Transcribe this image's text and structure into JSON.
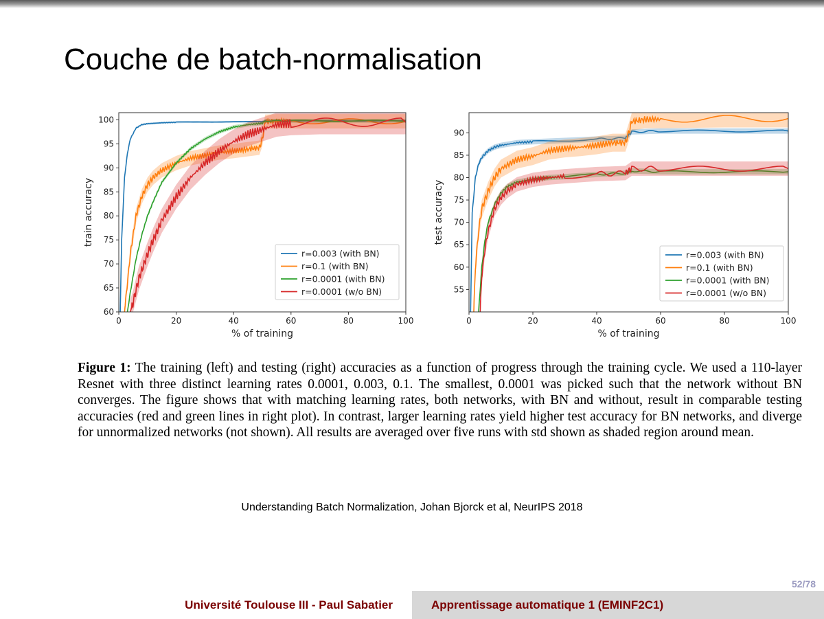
{
  "slide": {
    "title": "Couche de batch-normalisation",
    "figure_caption_label": "Figure 1:",
    "figure_caption_text": " The training (left) and testing (right) accuracies as a function of progress through the training cycle. We used a 110-layer Resnet with three distinct learning rates 0.0001, 0.003, 0.1. The smallest, 0.0001 was picked such that the network without BN converges. The figure shows that with matching learning rates, both networks, with BN and without, result in comparable testing accuracies (red and green lines in right plot). In contrast, larger learning rates yield higher test accuracy for BN networks, and diverge for unnormalized networks (not shown). All results are averaged over five runs with std shown as shaded region around mean.",
    "citation": "Understanding Batch Normalization, Johan Bjorck et al, NeurIPS 2018",
    "page_number": "52/78",
    "footer_left": "Université Toulouse III - Paul Sabatier",
    "footer_right": "Apprentissage automatique 1 (EMINF2C1)"
  },
  "colors": {
    "blue": "#1f77b4",
    "orange": "#ff7f0e",
    "green": "#2ca02c",
    "red": "#d62728",
    "footer_text": "#7a0000",
    "footer_bg": "#d7d7d7"
  },
  "chart_data": [
    {
      "type": "line",
      "title": "",
      "xlabel": "% of training",
      "ylabel": "train accuracy",
      "xlim": [
        0,
        100
      ],
      "ylim": [
        60,
        101.5
      ],
      "xticks": [
        0,
        20,
        40,
        60,
        80,
        100
      ],
      "yticks": [
        60,
        65,
        70,
        75,
        80,
        85,
        90,
        95,
        100
      ],
      "grid": false,
      "legend_position": "lower-right",
      "series": [
        {
          "name": "r=0.003 (with BN)",
          "color": "#1f77b4",
          "x": [
            0.5,
            1,
            2,
            3,
            4,
            6,
            8,
            10,
            15,
            20,
            30,
            40,
            50,
            51,
            60,
            80,
            100
          ],
          "y": [
            60,
            75,
            88,
            93,
            96,
            98.3,
            99,
            99.2,
            99.4,
            99.5,
            99.6,
            99.6,
            99.6,
            99.8,
            99.8,
            99.8,
            99.8
          ],
          "std": 0.2
        },
        {
          "name": "r=0.1 (with BN)",
          "color": "#ff7f0e",
          "x": [
            2,
            3,
            4,
            5,
            6,
            8,
            10,
            12,
            15,
            20,
            25,
            30,
            35,
            40,
            45,
            49,
            50,
            51,
            55,
            60,
            80,
            100
          ],
          "y": [
            60,
            66,
            72,
            76,
            80,
            84,
            86.5,
            88,
            89.5,
            91,
            92,
            92.6,
            93.2,
            93.5,
            93.9,
            94.2,
            96,
            99.6,
            99.7,
            99.7,
            99.7,
            99.7
          ],
          "std": 1.5
        },
        {
          "name": "r=0.0001 (with BN)",
          "color": "#2ca02c",
          "x": [
            3,
            4,
            6,
            8,
            10,
            12,
            15,
            20,
            25,
            30,
            35,
            40,
            45,
            50,
            51,
            60,
            80,
            100
          ],
          "y": [
            60,
            64,
            71,
            76,
            80,
            83,
            87,
            91,
            94,
            96,
            97.5,
            98.5,
            99,
            99.3,
            99.8,
            99.8,
            99.8,
            99.8
          ],
          "std": 0.4
        },
        {
          "name": "r=0.0001 (w/o BN)",
          "color": "#d62728",
          "x": [
            4,
            5,
            7,
            10,
            12,
            15,
            20,
            25,
            30,
            35,
            40,
            45,
            50,
            55,
            60,
            70,
            80,
            100
          ],
          "y": [
            60,
            62,
            67,
            72,
            75,
            79,
            84,
            88,
            91,
            93.5,
            95.5,
            97,
            98,
            99,
            99.3,
            99.5,
            99.5,
            99.5
          ],
          "std": 2.5
        }
      ]
    },
    {
      "type": "line",
      "title": "",
      "xlabel": "% of training",
      "ylabel": "test accuracy",
      "xlim": [
        0,
        100
      ],
      "ylim": [
        50,
        94.5
      ],
      "xticks": [
        0,
        20,
        40,
        60,
        80,
        100
      ],
      "yticks": [
        55,
        60,
        65,
        70,
        75,
        80,
        85,
        90
      ],
      "grid": false,
      "legend_position": "lower-right",
      "series": [
        {
          "name": "r=0.003 (with BN)",
          "color": "#1f77b4",
          "x": [
            0.5,
            1,
            2,
            3,
            4,
            6,
            8,
            10,
            15,
            20,
            30,
            40,
            49,
            50,
            51,
            60,
            80,
            100
          ],
          "y": [
            50,
            72,
            80,
            83,
            84.5,
            86,
            86.8,
            87.2,
            87.8,
            88,
            88.3,
            88.6,
            88.8,
            89.5,
            90.2,
            90.4,
            90.4,
            90.4
          ],
          "std": 0.6
        },
        {
          "name": "r=0.1 (with BN)",
          "color": "#ff7f0e",
          "x": [
            1.5,
            2,
            3,
            4,
            6,
            8,
            10,
            15,
            20,
            25,
            30,
            35,
            40,
            45,
            49,
            50,
            51,
            55,
            60,
            80,
            100
          ],
          "y": [
            50,
            60,
            68,
            73,
            77,
            80,
            82,
            84,
            84.8,
            86,
            86.5,
            86.8,
            87.2,
            87.8,
            87.8,
            90,
            92.5,
            93,
            93,
            93.2,
            93.2
          ],
          "std": 2.0
        },
        {
          "name": "r=0.0001 (with BN)",
          "color": "#2ca02c",
          "x": [
            3,
            4,
            5,
            6,
            8,
            10,
            12,
            15,
            20,
            25,
            30,
            40,
            49,
            50,
            51,
            60,
            80,
            100
          ],
          "y": [
            50,
            60,
            66,
            70,
            74,
            76.5,
            78,
            79,
            79.6,
            80,
            80.2,
            80.7,
            81,
            81.3,
            81.5,
            81.3,
            81.3,
            81.3
          ],
          "std": 0.6
        },
        {
          "name": "r=0.0001 (w/o BN)",
          "color": "#d62728",
          "x": [
            3.5,
            4,
            5,
            6,
            8,
            10,
            12,
            15,
            20,
            25,
            30,
            40,
            49,
            50,
            51,
            60,
            80,
            100
          ],
          "y": [
            50,
            58,
            64,
            68,
            73,
            75.5,
            77,
            78.5,
            79.5,
            80,
            80.3,
            80.8,
            81,
            81.5,
            82,
            82,
            82,
            82
          ],
          "std": 1.6
        }
      ]
    }
  ]
}
